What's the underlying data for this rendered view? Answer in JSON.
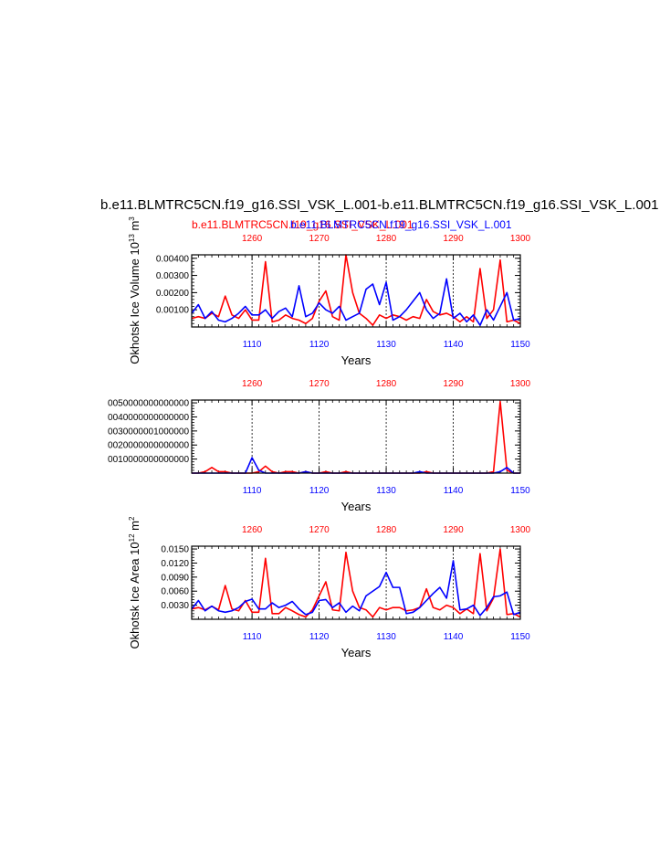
{
  "titles": {
    "main": "b.e11.BLMTRC5CN.f19_g16.SSI_VSK_L.001-b.e11.BLMTRC5CN.f19_g16.SSI_VSK_L.001",
    "red_case": "b.e11.BLMTRC5CN.f19_g16.SSI_VSK_L.001",
    "blue_case": "b.e11.BLMTRC5CN.f19_g16.SSI_VSK_L.001"
  },
  "colors": {
    "red": "#ff0000",
    "blue": "#0000ff",
    "axis": "#000000",
    "grid": "#000000"
  },
  "chart_data": [
    {
      "type": "line",
      "ylabel": "Okhotsk Ice Volume 10^13 m^3",
      "ylabel_base": "Okhotsk Ice Volume 10",
      "ylabel_exp": "13",
      "ylabel_unit": "m",
      "ylabel_unit_exp": "3",
      "xlabel": "Years",
      "xlim_bottom": [
        1101,
        1150
      ],
      "xlim_top": [
        1251,
        1300
      ],
      "ylim": [
        0,
        0.0042
      ],
      "bottom_ticks": [
        "1110",
        "1120",
        "1130",
        "1140",
        "1150"
      ],
      "top_ticks": [
        "1260",
        "1270",
        "1280",
        "1290",
        "1300"
      ],
      "y_ticks": [
        "0.00100",
        "0.00200",
        "0.00300",
        "0.00400"
      ],
      "y_tick_values": [
        0.001,
        0.002,
        0.003,
        0.004
      ],
      "series": [
        {
          "color": "red",
          "values": [
            0.0005,
            0.0006,
            0.0005,
            0.0008,
            0.0006,
            0.0018,
            0.0007,
            0.0005,
            0.001,
            0.0004,
            0.0004,
            0.0038,
            0.0003,
            0.0004,
            0.0007,
            0.0005,
            0.0004,
            0.0002,
            0.0005,
            0.0015,
            0.0021,
            0.0006,
            0.0004,
            0.0042,
            0.002,
            0.0008,
            0.0005,
            0.0001,
            0.0007,
            0.0005,
            0.0007,
            0.0006,
            0.0004,
            0.0006,
            0.0005,
            0.0016,
            0.0009,
            0.0007,
            0.0008,
            0.0006,
            0.0003,
            0.0006,
            0.0003,
            0.0034,
            0.0005,
            0.001,
            0.0039,
            0.0003,
            0.0004,
            0.0002
          ]
        },
        {
          "color": "blue",
          "values": [
            0.0008,
            0.0013,
            0.0005,
            0.0009,
            0.0004,
            0.0003,
            0.0005,
            0.0008,
            0.0012,
            0.0007,
            0.0007,
            0.001,
            0.0005,
            0.0009,
            0.0011,
            0.0006,
            0.0024,
            0.0006,
            0.0008,
            0.0014,
            0.001,
            0.0008,
            0.0012,
            0.0004,
            0.0006,
            0.0008,
            0.0022,
            0.0025,
            0.0013,
            0.0026,
            0.0004,
            0.0006,
            0.001,
            0.0015,
            0.002,
            0.001,
            0.0005,
            0.0008,
            0.0028,
            0.0005,
            0.0008,
            0.0003,
            0.0007,
            0.0001,
            0.001,
            0.0004,
            0.0012,
            0.002,
            0.0004,
            0.0005
          ]
        }
      ]
    },
    {
      "type": "line",
      "ylabel": "",
      "xlabel": "Years",
      "xlim_bottom": [
        1101,
        1150
      ],
      "xlim_top": [
        1251,
        1300
      ],
      "ylim": [
        0,
        0.0052
      ],
      "bottom_ticks": [
        "1110",
        "1120",
        "1130",
        "1140",
        "1150"
      ],
      "top_ticks": [
        "1260",
        "1270",
        "1280",
        "1290",
        "1300"
      ],
      "y_ticks": [
        "0010000000000000",
        "0020000000000000",
        "0030000001000000",
        "0040000000000000",
        "0050000000000000"
      ],
      "y_tick_values": [
        0.001,
        0.002,
        0.003,
        0.004,
        0.005
      ],
      "series": [
        {
          "color": "red",
          "values": [
            0,
            0,
            0.0001,
            0.0004,
            0.0001,
            0.0001,
            0,
            0,
            0,
            0,
            0.0001,
            0.0005,
            0.0001,
            0,
            0.0001,
            0.0001,
            0,
            0.0001,
            0,
            0,
            0.0001,
            0,
            0,
            0.0001,
            0,
            0,
            0,
            0,
            0,
            0,
            0,
            0,
            0,
            0,
            0,
            0.0001,
            0,
            0,
            0,
            0,
            0,
            0,
            0,
            0,
            0,
            0.0001,
            0.0051,
            0.0002,
            0,
            0
          ]
        },
        {
          "color": "blue",
          "values": [
            0,
            0,
            0,
            0,
            0,
            0,
            0,
            0,
            0,
            0.0011,
            0.0002,
            0,
            0,
            0,
            0,
            0,
            0,
            0.0001,
            0,
            0,
            0,
            0,
            0,
            0,
            0,
            0,
            0,
            0,
            0,
            0,
            0,
            0,
            0,
            0,
            0.0001,
            0,
            0,
            0,
            0,
            0,
            0,
            0,
            0,
            0,
            0,
            0,
            0.0001,
            0.0004,
            0,
            0
          ]
        }
      ]
    },
    {
      "type": "line",
      "ylabel": "Okhotsk Ice Area 10^12 m^2",
      "ylabel_base": "Okhotsk Ice Area 10",
      "ylabel_exp": "12",
      "ylabel_unit": "m",
      "ylabel_unit_exp": "2",
      "xlabel": "Years",
      "xlim_bottom": [
        1101,
        1150
      ],
      "xlim_top": [
        1251,
        1300
      ],
      "ylim": [
        0,
        0.0156
      ],
      "bottom_ticks": [
        "1110",
        "1120",
        "1130",
        "1140",
        "1150"
      ],
      "top_ticks": [
        "1260",
        "1270",
        "1280",
        "1290",
        "1300"
      ],
      "y_ticks": [
        "0.0030",
        "0.0060",
        "0.0090",
        "0.0120",
        "0.0150"
      ],
      "y_tick_values": [
        0.003,
        0.006,
        0.009,
        0.012,
        0.015
      ],
      "series": [
        {
          "color": "red",
          "values": [
            0.0022,
            0.0025,
            0.002,
            0.0028,
            0.002,
            0.0072,
            0.0022,
            0.0018,
            0.004,
            0.0015,
            0.0015,
            0.013,
            0.0012,
            0.0012,
            0.0025,
            0.0018,
            0.001,
            0.0005,
            0.002,
            0.005,
            0.008,
            0.002,
            0.0018,
            0.0143,
            0.006,
            0.0025,
            0.002,
            0.0005,
            0.0025,
            0.002,
            0.0025,
            0.0025,
            0.0018,
            0.002,
            0.0025,
            0.0065,
            0.0025,
            0.002,
            0.003,
            0.0025,
            0.0012,
            0.0022,
            0.0012,
            0.014,
            0.0018,
            0.0045,
            0.015,
            0.001,
            0.0012,
            0.0005
          ]
        },
        {
          "color": "blue",
          "values": [
            0.0022,
            0.004,
            0.0018,
            0.0028,
            0.0018,
            0.0015,
            0.0018,
            0.0025,
            0.0038,
            0.0043,
            0.0022,
            0.0022,
            0.0035,
            0.0025,
            0.003,
            0.0038,
            0.0022,
            0.001,
            0.0015,
            0.004,
            0.0042,
            0.0025,
            0.0035,
            0.0015,
            0.0028,
            0.0018,
            0.005,
            0.006,
            0.007,
            0.01,
            0.0068,
            0.0068,
            0.0012,
            0.0015,
            0.0025,
            0.004,
            0.0055,
            0.0068,
            0.0045,
            0.0125,
            0.002,
            0.0022,
            0.003,
            0.0008,
            0.0025,
            0.0048,
            0.005,
            0.0058,
            0.001,
            0.0015
          ]
        }
      ]
    }
  ]
}
